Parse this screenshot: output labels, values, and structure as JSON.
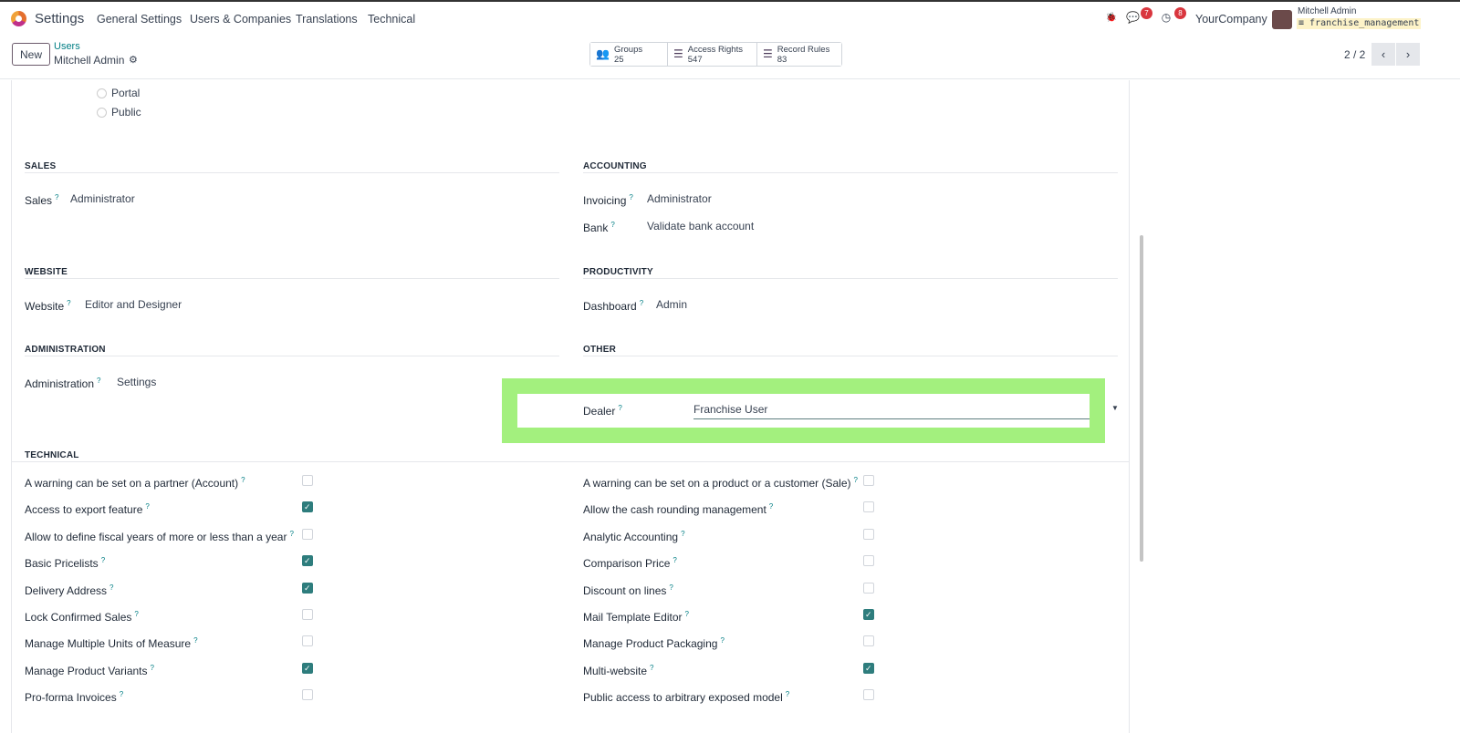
{
  "nav": {
    "app": "Settings",
    "menu": [
      "General Settings",
      "Users & Companies",
      "Translations",
      "Technical"
    ],
    "messages_count": "7",
    "activity_count": "8",
    "company": "YourCompany",
    "user": "Mitchell Admin",
    "database": "franchise_management"
  },
  "control": {
    "new_label": "New",
    "breadcrumb_parent": "Users",
    "breadcrumb_current": "Mitchell Admin",
    "stats": [
      {
        "label": "Groups",
        "value": "25",
        "icon": "users-icon"
      },
      {
        "label": "Access Rights",
        "value": "547",
        "icon": "list-icon"
      },
      {
        "label": "Record Rules",
        "value": "83",
        "icon": "list-icon"
      }
    ],
    "pager": "2 / 2"
  },
  "user_type": {
    "options": [
      "Portal",
      "Public"
    ]
  },
  "sections": {
    "sales": {
      "title": "SALES",
      "fields": [
        {
          "label": "Sales",
          "value": "Administrator"
        }
      ]
    },
    "accounting": {
      "title": "ACCOUNTING",
      "fields": [
        {
          "label": "Invoicing",
          "value": "Administrator"
        },
        {
          "label": "Bank",
          "value": "Validate bank account"
        }
      ]
    },
    "website": {
      "title": "WEBSITE",
      "fields": [
        {
          "label": "Website",
          "value": "Editor and Designer"
        }
      ]
    },
    "productivity": {
      "title": "PRODUCTIVITY",
      "fields": [
        {
          "label": "Dashboard",
          "value": "Admin"
        }
      ]
    },
    "administration": {
      "title": "ADMINISTRATION",
      "fields": [
        {
          "label": "Administration",
          "value": "Settings"
        }
      ]
    },
    "other": {
      "title": "OTHER",
      "dealer_label": "Dealer",
      "dealer_value": "Franchise User"
    }
  },
  "technical": {
    "title": "TECHNICAL",
    "left": [
      {
        "label": "A warning can be set on a partner (Account)",
        "checked": false
      },
      {
        "label": "Access to export feature",
        "checked": true
      },
      {
        "label": "Allow to define fiscal years of more or less than a year",
        "checked": false
      },
      {
        "label": "Basic Pricelists",
        "checked": true
      },
      {
        "label": "Delivery Address",
        "checked": true
      },
      {
        "label": "Lock Confirmed Sales",
        "checked": false
      },
      {
        "label": "Manage Multiple Units of Measure",
        "checked": false
      },
      {
        "label": "Manage Product Variants",
        "checked": true
      },
      {
        "label": "Pro-forma Invoices",
        "checked": false
      }
    ],
    "right": [
      {
        "label": "A warning can be set on a product or a customer (Sale)",
        "checked": false
      },
      {
        "label": "Allow the cash rounding management",
        "checked": false
      },
      {
        "label": "Analytic Accounting",
        "checked": false
      },
      {
        "label": "Comparison Price",
        "checked": false
      },
      {
        "label": "Discount on lines",
        "checked": false
      },
      {
        "label": "Mail Template Editor",
        "checked": true
      },
      {
        "label": "Manage Product Packaging",
        "checked": false
      },
      {
        "label": "Multi-website",
        "checked": true
      },
      {
        "label": "Public access to arbitrary exposed model",
        "checked": false
      }
    ]
  },
  "colors": {
    "accent": "#017e84",
    "highlight": "#a3f07e",
    "checkbox": "#2e7d7d",
    "badge": "#d9363e"
  }
}
